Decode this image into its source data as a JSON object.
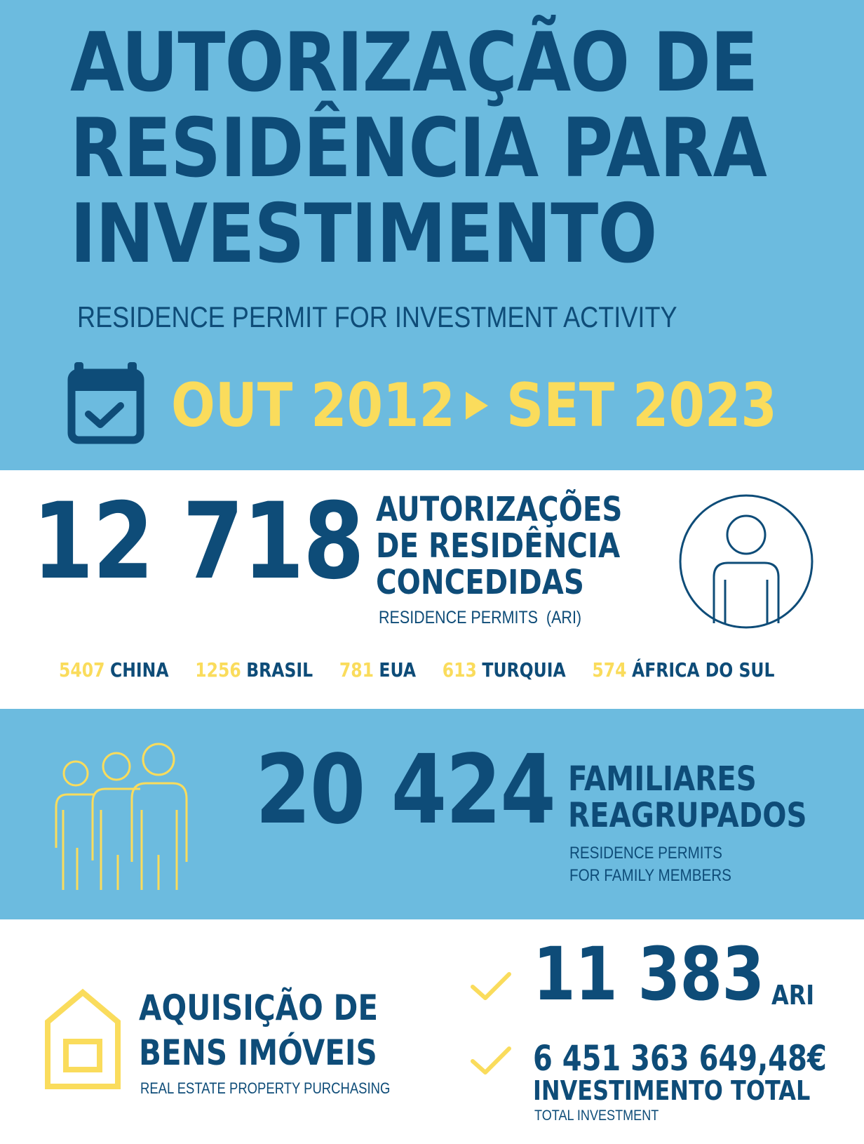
{
  "colors": {
    "light_blue": "#6cbbdf",
    "navy": "#0e4c78",
    "yellow": "#fadc5c",
    "white": "#ffffff"
  },
  "header": {
    "title_lines": [
      "AUTORIZAÇÃO DE",
      "RESIDÊNCIA PARA",
      "INVESTIMENTO"
    ],
    "subtitle": "RESIDENCE PERMIT FOR INVESTMENT ACTIVITY",
    "period": {
      "icon": "calendar-check-icon",
      "start": "OUT 2012",
      "arrow_icon": "triangle-right-icon",
      "end": "SET 2023"
    }
  },
  "permits": {
    "total": "12 718",
    "label_lines": [
      "AUTORIZAÇÕES",
      "DE RESIDÊNCIA",
      "CONCEDIDAS"
    ],
    "sublabel": "RESIDENCE PERMITS  (ARI)",
    "icon": "person-circle-icon",
    "countries": [
      {
        "count": "5407",
        "name": "CHINA"
      },
      {
        "count": "1256",
        "name": "BRASIL"
      },
      {
        "count": "781",
        "name": "EUA"
      },
      {
        "count": "613",
        "name": "TURQUIA"
      },
      {
        "count": "574",
        "name": "ÁFRICA DO SUL"
      }
    ]
  },
  "family": {
    "icon": "family-group-icon",
    "total": "20 424",
    "label_lines": [
      "FAMILIARES",
      "REAGRUPADOS"
    ],
    "sublabel_lines": [
      "RESIDENCE PERMITS",
      "FOR FAMILY MEMBERS"
    ]
  },
  "real_estate": {
    "icon": "house-icon",
    "label_lines": [
      "AQUISIÇÃO DE",
      "BENS IMÓVEIS"
    ],
    "sublabel": "REAL ESTATE PROPERTY PURCHASING",
    "ari_count": "11 383",
    "ari_unit": "ARI",
    "investment": "6 451 363 649,48€",
    "investment_label": "INVESTIMENTO TOTAL",
    "investment_sublabel": "TOTAL INVESTMENT",
    "check_icon": "check-icon"
  }
}
